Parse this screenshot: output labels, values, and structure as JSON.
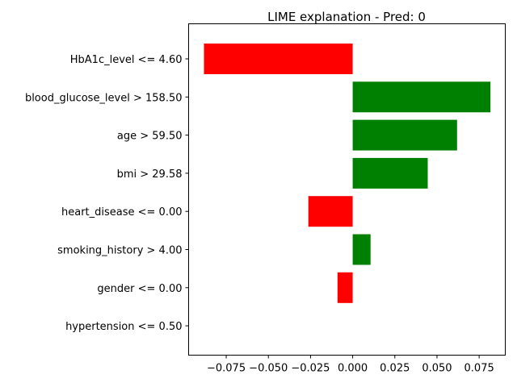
{
  "chart_data": {
    "type": "bar",
    "orientation": "horizontal",
    "title": "LIME explanation - Pred: 0",
    "xlabel": "",
    "ylabel": "",
    "categories": [
      "HbA1c_level <= 4.60",
      "blood_glucose_level > 158.50",
      "age > 59.50",
      "bmi > 29.58",
      "heart_disease <= 0.00",
      "smoking_history > 4.00",
      "gender <= 0.00",
      "hypertension <= 0.50"
    ],
    "values": [
      -0.0882,
      0.0817,
      0.0619,
      0.0445,
      -0.0263,
      0.0106,
      -0.009,
      0.0
    ],
    "xlim": [
      -0.0973,
      0.0905
    ],
    "xticks": [
      -0.075,
      -0.05,
      -0.025,
      0.0,
      0.025,
      0.05,
      0.075
    ],
    "xtick_labels": [
      "−0.075",
      "−0.050",
      "−0.025",
      "0.000",
      "0.025",
      "0.050",
      "0.075"
    ],
    "positive_color": "#008000",
    "negative_color": "#ff0000",
    "grid": false,
    "legend": "none"
  }
}
